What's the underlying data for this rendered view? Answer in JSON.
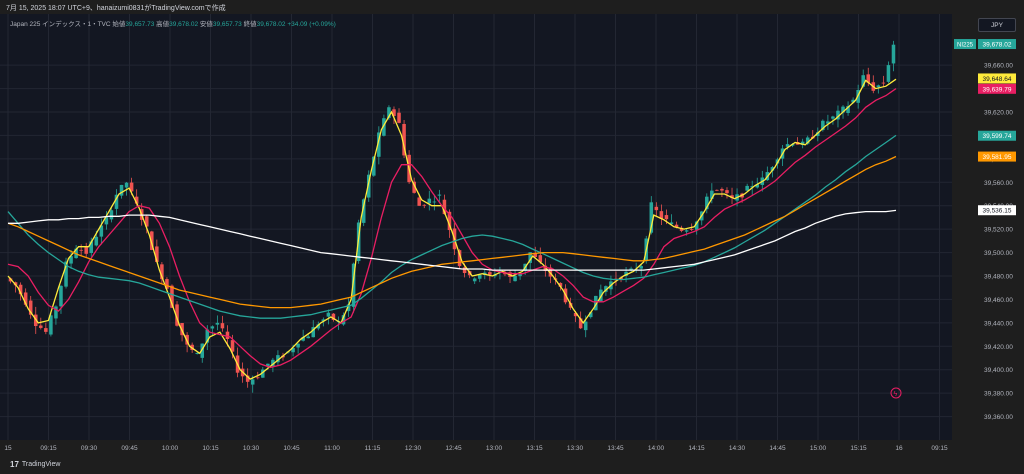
{
  "header": {
    "caption": "7月 15, 2025 18:07 UTC+9、hanaizumi0831がTradingView.comで作成"
  },
  "legend": {
    "symbol": "Japan 225 インデックス・1・TVC",
    "open_label": "始値",
    "open": "39,657.73",
    "high_label": "高値",
    "high": "39,678.02",
    "low_label": "安値",
    "low": "39,657.73",
    "close_label": "終値",
    "close": "39,678.02",
    "change": "+34.09 (+0.09%)"
  },
  "currency": "JPY",
  "branding": {
    "logo": "17",
    "name": "TradingView"
  },
  "colors": {
    "up": "#26a69a",
    "down": "#ef5350",
    "ma_yellow": "#ffeb3b",
    "ma_pink": "#e91e63",
    "ma_teal": "#26a69a",
    "ma_orange": "#ff9800",
    "ma_white": "#ffffff"
  },
  "chart_data": {
    "type": "candlestick",
    "symbol": "NI225",
    "yaxis": {
      "ticks": [
        39360,
        39380,
        39400,
        39420,
        39440,
        39460,
        39480,
        39500,
        39520,
        39540,
        39560,
        39580,
        39600,
        39620,
        39640,
        39660
      ],
      "tick_labels": [
        "39,360.00",
        "39,380.00",
        "39,400.00",
        "39,420.00",
        "39,440.00",
        "39,460.00",
        "39,480.00",
        "39,500.00",
        "39,520.00",
        "39,540.00",
        "39,560.00",
        "39,580.00",
        "39,600.00",
        "39,620.00",
        "39,640.00",
        "39,660.00"
      ],
      "range": [
        39340,
        39690
      ]
    },
    "xaxis": {
      "labels": [
        "15",
        "09:15",
        "09:30",
        "09:45",
        "10:00",
        "10:15",
        "10:30",
        "10:45",
        "11:00",
        "11:15",
        "12:30",
        "12:45",
        "13:00",
        "13:15",
        "13:30",
        "13:45",
        "14:00",
        "14:15",
        "14:30",
        "14:45",
        "15:00",
        "15:15",
        "16",
        "09:15"
      ]
    },
    "price_tags": [
      {
        "label": "NI225",
        "value": 39678.02,
        "text": "39,678.02",
        "color": "#26a69a"
      },
      {
        "label": "",
        "value": 39648.64,
        "text": "39,648.64",
        "color": "#ffeb3b"
      },
      {
        "label": "",
        "value": 39639.79,
        "text": "39,639.79",
        "color": "#e91e63"
      },
      {
        "label": "",
        "value": 39599.74,
        "text": "39,599.74",
        "color": "#26a69a"
      },
      {
        "label": "",
        "value": 39581.95,
        "text": "39,581.95",
        "color": "#ff9800"
      },
      {
        "label": "",
        "value": 39536.15,
        "text": "39,536.15",
        "color": "#ffffff"
      }
    ],
    "price_anchors": [
      39478,
      39472,
      39458,
      39440,
      39432,
      39455,
      39490,
      39505,
      39500,
      39515,
      39528,
      39550,
      39560,
      39540,
      39520,
      39490,
      39470,
      39440,
      39420,
      39412,
      39435,
      39440,
      39425,
      39400,
      39390,
      39395,
      39405,
      39410,
      39415,
      39425,
      39430,
      39440,
      39446,
      39440,
      39455,
      39525,
      39565,
      39600,
      39625,
      39610,
      39560,
      39540,
      39545,
      39548,
      39520,
      39490,
      39478,
      39482,
      39480,
      39485,
      39478,
      39483,
      39500,
      39490,
      39480,
      39470,
      39450,
      39436,
      39452,
      39468,
      39475,
      39480,
      39484,
      39490,
      39540,
      39530,
      39524,
      39520,
      39522,
      39535,
      39555,
      39552,
      39545,
      39550,
      39558,
      39562,
      39575,
      39590,
      39595,
      39592,
      39600,
      39610,
      39615,
      39622,
      39630,
      39650,
      39640,
      39645,
      39678
    ],
    "ma_series": [
      {
        "color": "#ffeb3b",
        "points": [
          39480,
          39470,
          39452,
          39440,
          39442,
          39470,
          39495,
          39505,
          39505,
          39520,
          39535,
          39550,
          39555,
          39538,
          39515,
          39485,
          39462,
          39438,
          39420,
          39414,
          39428,
          39432,
          39418,
          39400,
          39392,
          39396,
          39403,
          39410,
          39417,
          39426,
          39432,
          39440,
          39445,
          39440,
          39460,
          39530,
          39570,
          39605,
          39620,
          39600,
          39562,
          39545,
          39540,
          39540,
          39518,
          39492,
          39480,
          39482,
          39480,
          39484,
          39480,
          39484,
          39497,
          39490,
          39480,
          39468,
          39452,
          39440,
          39452,
          39466,
          39474,
          39480,
          39484,
          39492,
          39532,
          39528,
          39522,
          39520,
          39522,
          39535,
          39550,
          39550,
          39546,
          39550,
          39557,
          39562,
          39573,
          39588,
          39594,
          39592,
          39600,
          39608,
          39614,
          39622,
          39630,
          39647,
          39640,
          39642,
          39648
        ]
      },
      {
        "color": "#e91e63",
        "points": [
          39490,
          39488,
          39480,
          39466,
          39455,
          39450,
          39460,
          39475,
          39492,
          39505,
          39515,
          39525,
          39535,
          39540,
          39538,
          39525,
          39505,
          39480,
          39458,
          39440,
          39432,
          39430,
          39428,
          39420,
          39412,
          39405,
          39402,
          39404,
          39408,
          39414,
          39420,
          39427,
          39434,
          39440,
          39445,
          39465,
          39495,
          39530,
          39560,
          39575,
          39575,
          39565,
          39552,
          39540,
          39530,
          39515,
          39500,
          39490,
          39485,
          39483,
          39482,
          39482,
          39485,
          39488,
          39486,
          39480,
          39472,
          39462,
          39458,
          39458,
          39462,
          39467,
          39472,
          39478,
          39490,
          39505,
          39512,
          39515,
          39518,
          39522,
          39530,
          39537,
          39541,
          39545,
          39550,
          39555,
          39561,
          39569,
          39577,
          39583,
          39590,
          39596,
          39602,
          39608,
          39615,
          39624,
          39630,
          39634,
          39640
        ]
      },
      {
        "color": "#26a69a",
        "points": [
          39535,
          39525,
          39515,
          39507,
          39500,
          39494,
          39488,
          39484,
          39481,
          39479,
          39478,
          39477,
          39476,
          39474,
          39471,
          39468,
          39465,
          39462,
          39459,
          39456,
          39453,
          39450,
          39448,
          39446,
          39445,
          39444,
          39444,
          39444,
          39445,
          39446,
          39447,
          39449,
          39451,
          39453,
          39455,
          39461,
          39468,
          39475,
          39483,
          39489,
          39494,
          39498,
          39502,
          39506,
          39509,
          39512,
          39514,
          39515,
          39514,
          39512,
          39510,
          39507,
          39503,
          39499,
          39495,
          39491,
          39487,
          39483,
          39480,
          39478,
          39477,
          39477,
          39478,
          39479,
          39481,
          39483,
          39485,
          39487,
          39489,
          39492,
          39496,
          39500,
          39504,
          39509,
          39514,
          39519,
          39525,
          39531,
          39537,
          39543,
          39549,
          39556,
          39562,
          39569,
          39575,
          39582,
          39588,
          39594,
          39600
        ]
      },
      {
        "color": "#ff9800",
        "points": [
          39525,
          39522,
          39518,
          39514,
          39510,
          39506,
          39502,
          39498,
          39495,
          39492,
          39489,
          39486,
          39483,
          39480,
          39477,
          39474,
          39471,
          39468,
          39466,
          39464,
          39462,
          39460,
          39458,
          39456,
          39455,
          39454,
          39453,
          39453,
          39453,
          39454,
          39455,
          39456,
          39458,
          39460,
          39462,
          39466,
          39470,
          39474,
          39478,
          39481,
          39484,
          39486,
          39488,
          39490,
          39491,
          39492,
          39493,
          39494,
          39495,
          39496,
          39497,
          39498,
          39499,
          39500,
          39500,
          39500,
          39499,
          39498,
          39497,
          39496,
          39495,
          39494,
          39493,
          39493,
          39494,
          39495,
          39497,
          39499,
          39501,
          39503,
          39506,
          39509,
          39512,
          39515,
          39519,
          39523,
          39527,
          39531,
          39536,
          39541,
          39546,
          39551,
          39556,
          39561,
          39566,
          39571,
          39575,
          39578,
          39582
        ]
      },
      {
        "color": "#ffffff",
        "points": [
          39525,
          39525,
          39526,
          39527,
          39528,
          39528,
          39529,
          39529,
          39530,
          39530,
          39531,
          39531,
          39532,
          39532,
          39532,
          39531,
          39530,
          39528,
          39526,
          39524,
          39522,
          39520,
          39518,
          39516,
          39514,
          39512,
          39510,
          39508,
          39506,
          39504,
          39502,
          39500,
          39499,
          39498,
          39497,
          39496,
          39495,
          39494,
          39493,
          39492,
          39491,
          39490,
          39489,
          39488,
          39487,
          39486,
          39486,
          39486,
          39485,
          39485,
          39485,
          39485,
          39485,
          39485,
          39485,
          39485,
          39485,
          39485,
          39485,
          39485,
          39485,
          39485,
          39485,
          39485,
          39486,
          39487,
          39488,
          39489,
          39490,
          39492,
          39494,
          39496,
          39498,
          39501,
          39504,
          39507,
          39510,
          39514,
          39518,
          39521,
          39525,
          39528,
          39531,
          39533,
          39534,
          39535,
          39535,
          39535,
          39536
        ]
      }
    ],
    "grid": true
  }
}
